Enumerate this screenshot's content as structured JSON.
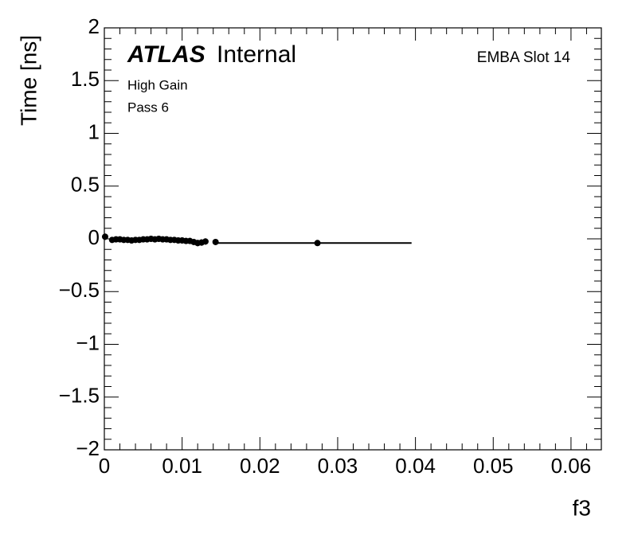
{
  "chart_data": {
    "type": "scatter",
    "x_label": "f3",
    "y_label": "Time [ns]",
    "annotations": {
      "atlas": "ATLAS",
      "status": "Internal",
      "gain": "High Gain",
      "pass": "Pass 6",
      "module": "EMBA Slot 14"
    },
    "series": [
      {
        "color": "#000000",
        "x": [
          0.0001,
          0.001,
          0.0015,
          0.002,
          0.0025,
          0.003,
          0.0035,
          0.004,
          0.0045,
          0.005,
          0.0055,
          0.006,
          0.0065,
          0.007,
          0.0075,
          0.008,
          0.0085,
          0.009,
          0.0095,
          0.01,
          0.0105,
          0.011,
          0.0115,
          0.012,
          0.0125,
          0.013,
          0.0143,
          0.0274
        ],
        "values": [
          0.02,
          -0.01,
          -0.005,
          -0.005,
          -0.01,
          -0.01,
          -0.015,
          -0.01,
          -0.01,
          -0.005,
          -0.005,
          0.0,
          -0.005,
          0.0,
          -0.005,
          -0.005,
          -0.01,
          -0.01,
          -0.015,
          -0.015,
          -0.02,
          -0.02,
          -0.03,
          -0.04,
          -0.035,
          -0.025,
          -0.03,
          -0.04
        ],
        "errors": [
          0.03,
          0.025,
          0.02,
          0.02,
          0.02,
          0.02,
          0.02,
          0.02,
          0.02,
          0.02,
          0.02,
          0.02,
          0.02,
          0.02,
          0.02,
          0.02,
          0.02,
          0.02,
          0.02,
          0.02,
          0.02,
          0.02,
          0.025,
          0.03,
          0.03,
          0.03,
          0.02,
          0.02
        ]
      }
    ],
    "fit": {
      "x": [
        0.0143,
        0.0395
      ],
      "values": [
        -0.04,
        -0.04
      ],
      "color": "#000000"
    },
    "xlim": [
      0,
      0.0639
    ],
    "ylim": [
      -2,
      2
    ],
    "xticks": [
      0,
      0.01,
      0.02,
      0.03,
      0.04,
      0.05,
      0.06
    ],
    "yticks": [
      {
        "value": -2,
        "label": "−2"
      },
      {
        "value": -1.5,
        "label": "−1.5"
      },
      {
        "value": -1,
        "label": "−1"
      },
      {
        "value": -0.5,
        "label": "−0.5"
      },
      0,
      0.5,
      1,
      1.5,
      2
    ]
  }
}
